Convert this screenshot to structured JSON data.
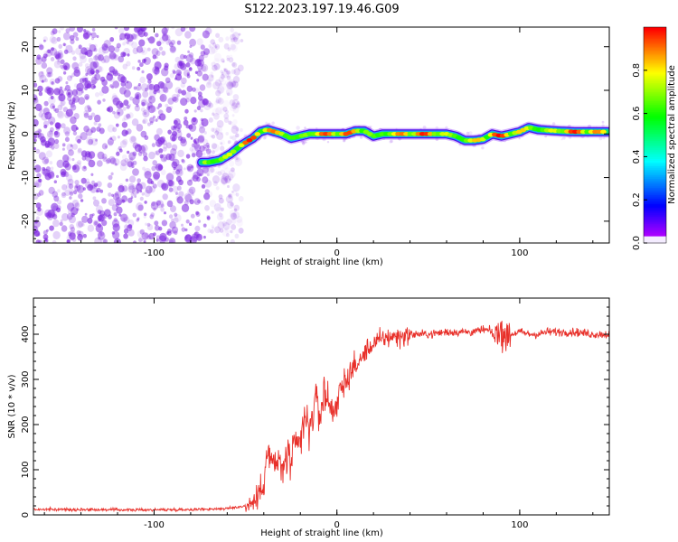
{
  "title": "S122.2023.197.19.46.G09",
  "colors": {
    "snr_line": "#e8302a",
    "axis": "#000000",
    "spectrum_noise": "#7a20e0"
  },
  "chart_data": [
    {
      "type": "heatmap",
      "xlabel": "Height of straight line (km)",
      "ylabel": "Frequency (Hz)",
      "xlim": [
        -166,
        149
      ],
      "ylim": [
        -25,
        24.5
      ],
      "xticks": [
        -100,
        0,
        100
      ],
      "yticks": [
        -20,
        -10,
        0,
        10,
        20
      ],
      "grid": false,
      "colorbar": {
        "label": "Normalized spectral amplitude",
        "range": [
          0,
          1
        ],
        "ticks": [
          "0.0",
          "0.2",
          "0.4",
          "0.6",
          "0.8"
        ],
        "colormap": "gist_rainbow_r"
      },
      "ridge": {
        "x": [
          -74,
          -70,
          -64,
          -58,
          -52,
          -46,
          -42,
          -38,
          -34,
          -30,
          -25,
          -20,
          -15,
          -10,
          -5,
          0,
          5,
          10,
          15,
          20,
          25,
          30,
          40,
          50,
          60,
          65,
          70,
          75,
          80,
          85,
          90,
          95,
          100,
          105,
          110,
          120,
          130,
          140,
          148
        ],
        "y": [
          -6.5,
          -6.5,
          -6,
          -4.5,
          -2.5,
          -1,
          0.5,
          1,
          0.5,
          0,
          -1,
          -0.5,
          0,
          0,
          0,
          0,
          0,
          0.7,
          0.7,
          -0.5,
          0,
          0,
          0,
          0,
          0,
          -0.5,
          -1.5,
          -1.5,
          -1.2,
          0,
          -0.5,
          0,
          0.5,
          1.5,
          1,
          0.7,
          0.5,
          0.5,
          0.5
        ]
      },
      "noise_region_xmax": -60
    },
    {
      "type": "line",
      "xlabel": "Height of straight line (km)",
      "ylabel": "SNR (10 * v/v)",
      "xlim": [
        -166,
        149
      ],
      "ylim": [
        0,
        480
      ],
      "xticks": [
        -100,
        0,
        100
      ],
      "yticks": [
        0,
        100,
        200,
        300,
        400
      ],
      "grid": false,
      "series": [
        {
          "x": [
            -166,
            -140,
            -110,
            -80,
            -60,
            -50,
            -45,
            -42,
            -40,
            -38,
            -35,
            -32,
            -30,
            -28,
            -25,
            -22,
            -20,
            -18,
            -15,
            -13,
            -11,
            -9,
            -7,
            -5,
            -3,
            0,
            3,
            5,
            8,
            10,
            13,
            15,
            18,
            20,
            23,
            25,
            30,
            35,
            40,
            50,
            60,
            70,
            75,
            80,
            85,
            88,
            90,
            92,
            95,
            100,
            105,
            110,
            115,
            120,
            130,
            140,
            149
          ],
          "values": [
            12,
            12,
            11,
            12,
            14,
            20,
            30,
            50,
            80,
            140,
            110,
            120,
            90,
            130,
            120,
            150,
            160,
            210,
            190,
            230,
            250,
            220,
            270,
            260,
            230,
            250,
            280,
            300,
            320,
            330,
            340,
            360,
            370,
            380,
            385,
            390,
            395,
            395,
            400,
            400,
            405,
            405,
            405,
            410,
            405,
            400,
            400,
            395,
            400,
            405,
            400,
            400,
            405,
            405,
            405,
            400,
            400
          ]
        }
      ]
    }
  ]
}
